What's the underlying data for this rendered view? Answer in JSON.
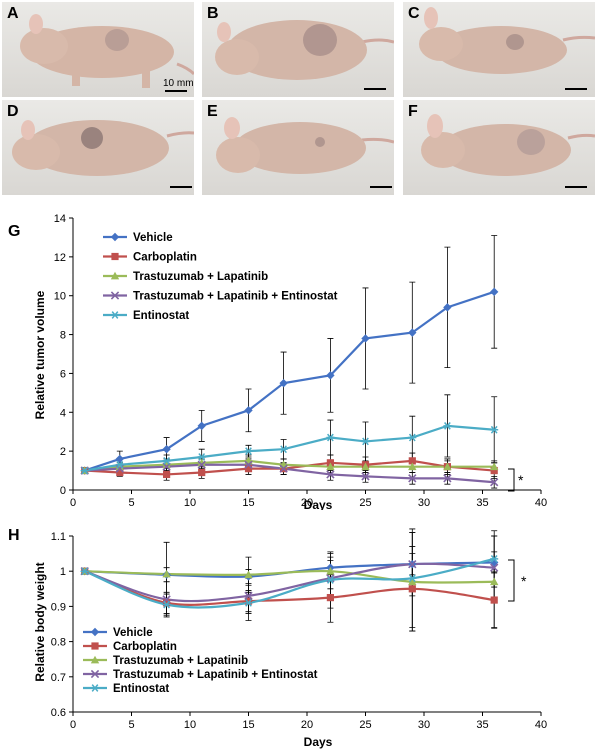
{
  "photos": [
    {
      "letter": "A",
      "scale_label": "10 mm"
    },
    {
      "letter": "B"
    },
    {
      "letter": "C"
    },
    {
      "letter": "D"
    },
    {
      "letter": "E"
    },
    {
      "letter": "F"
    }
  ],
  "colors": {
    "vehicle": "#4472C4",
    "carboplatin": "#C0504D",
    "trastuzumab_lapatinib": "#9BBB59",
    "triple": "#8064A2",
    "entinostat": "#4BACC6"
  },
  "chart_data": [
    {
      "panel_letter": "G",
      "type": "line",
      "xlabel": "Days",
      "ylabel": "Relative tumor volume",
      "xlim": [
        0,
        40
      ],
      "ylim": [
        0,
        14
      ],
      "xticks": [
        0,
        5,
        10,
        15,
        20,
        25,
        30,
        35,
        40
      ],
      "yticks": [
        0,
        2,
        4,
        6,
        8,
        10,
        12,
        14
      ],
      "legend_position": "top-left",
      "significance_label": "*",
      "series": [
        {
          "name": "Vehicle",
          "marker": "diamond",
          "color": "#4472C4",
          "x": [
            1,
            4,
            8,
            11,
            15,
            18,
            22,
            25,
            29,
            32,
            36
          ],
          "y": [
            1.0,
            1.6,
            2.1,
            3.3,
            4.1,
            5.5,
            5.9,
            7.8,
            8.1,
            9.4,
            10.2
          ],
          "err": [
            0.1,
            0.4,
            0.6,
            0.8,
            1.1,
            1.6,
            1.9,
            2.6,
            2.6,
            3.1,
            2.9
          ]
        },
        {
          "name": "Carboplatin",
          "marker": "square",
          "color": "#C0504D",
          "x": [
            1,
            4,
            8,
            11,
            15,
            18,
            22,
            25,
            29,
            32,
            36
          ],
          "y": [
            1.0,
            0.9,
            0.8,
            0.9,
            1.1,
            1.1,
            1.4,
            1.3,
            1.5,
            1.2,
            1.0
          ],
          "err": [
            0.1,
            0.2,
            0.3,
            0.3,
            0.3,
            0.3,
            0.4,
            0.4,
            0.4,
            0.4,
            0.4
          ]
        },
        {
          "name": "Trastuzumab + Lapatinib",
          "marker": "triangle",
          "color": "#9BBB59",
          "x": [
            1,
            4,
            8,
            11,
            15,
            18,
            22,
            25,
            29,
            32,
            36
          ],
          "y": [
            1.0,
            1.2,
            1.3,
            1.4,
            1.5,
            1.3,
            1.2,
            1.2,
            1.2,
            1.2,
            1.2
          ],
          "err": [
            0.1,
            0.2,
            0.3,
            0.3,
            0.3,
            0.3,
            0.3,
            0.3,
            0.3,
            0.3,
            0.3
          ]
        },
        {
          "name": "Trastuzumab + Lapatinib + Entinostat",
          "marker": "x",
          "color": "#8064A2",
          "x": [
            1,
            4,
            8,
            11,
            15,
            18,
            22,
            25,
            29,
            32,
            36
          ],
          "y": [
            1.0,
            1.1,
            1.2,
            1.3,
            1.3,
            1.1,
            0.8,
            0.7,
            0.6,
            0.6,
            0.4
          ],
          "err": [
            0.1,
            0.2,
            0.3,
            0.3,
            0.3,
            0.3,
            0.3,
            0.3,
            0.3,
            0.3,
            0.3
          ]
        },
        {
          "name": "Entinostat",
          "marker": "star",
          "color": "#4BACC6",
          "x": [
            1,
            4,
            8,
            11,
            15,
            18,
            22,
            25,
            29,
            32,
            36
          ],
          "y": [
            1.0,
            1.3,
            1.5,
            1.7,
            2.0,
            2.1,
            2.7,
            2.5,
            2.7,
            3.3,
            3.1
          ],
          "err": [
            0.1,
            0.3,
            0.3,
            0.4,
            0.3,
            0.5,
            0.9,
            1.0,
            1.1,
            1.6,
            1.7
          ]
        }
      ]
    },
    {
      "panel_letter": "H",
      "type": "line",
      "xlabel": "Days",
      "ylabel": "Relative body weight",
      "xlim": [
        0,
        40
      ],
      "ylim": [
        0.6,
        1.1
      ],
      "xticks": [
        0,
        5,
        10,
        15,
        20,
        25,
        30,
        35,
        40
      ],
      "yticks": [
        0.6,
        0.7,
        0.8,
        0.9,
        1.0,
        1.1
      ],
      "ytick_labels": [
        "0.6",
        "0.7",
        "0.8",
        "0.9",
        "1",
        "1.1"
      ],
      "legend_position": "bottom-left",
      "significance_label": "*",
      "series": [
        {
          "name": "Vehicle",
          "marker": "diamond",
          "color": "#4472C4",
          "x": [
            1,
            8,
            15,
            22,
            29,
            36
          ],
          "y": [
            1.0,
            0.99,
            0.985,
            1.01,
            1.02,
            1.025
          ],
          "err": [
            0.003,
            0.02,
            0.02,
            0.02,
            0.03,
            0.03
          ]
        },
        {
          "name": "Carboplatin",
          "marker": "square",
          "color": "#C0504D",
          "x": [
            1,
            8,
            15,
            22,
            29,
            36
          ],
          "y": [
            1.0,
            0.91,
            0.915,
            0.925,
            0.95,
            0.918
          ],
          "err": [
            0.003,
            0.03,
            0.03,
            0.07,
            0.12,
            0.08
          ]
        },
        {
          "name": "Trastuzumab + Lapatinib",
          "marker": "triangle",
          "color": "#9BBB59",
          "x": [
            1,
            8,
            15,
            22,
            29,
            36
          ],
          "y": [
            1.0,
            0.992,
            0.99,
            1.0,
            0.97,
            0.97
          ],
          "err": [
            0.003,
            0.09,
            0.05,
            0.05,
            0.14,
            0.13
          ]
        },
        {
          "name": "Trastuzumab + Lapatinib + Entinostat",
          "marker": "x",
          "color": "#8064A2",
          "x": [
            1,
            8,
            15,
            22,
            29,
            36
          ],
          "y": [
            1.0,
            0.92,
            0.93,
            0.98,
            1.02,
            1.01
          ],
          "err": [
            0.003,
            0.05,
            0.05,
            0.06,
            0.09,
            0.09
          ]
        },
        {
          "name": "Entinostat",
          "marker": "star",
          "color": "#4BACC6",
          "x": [
            1,
            8,
            15,
            22,
            29,
            36
          ],
          "y": [
            1.0,
            0.905,
            0.91,
            0.975,
            0.98,
            1.035
          ],
          "err": [
            0.003,
            0.03,
            0.05,
            0.08,
            0.14,
            0.08
          ]
        }
      ]
    }
  ]
}
